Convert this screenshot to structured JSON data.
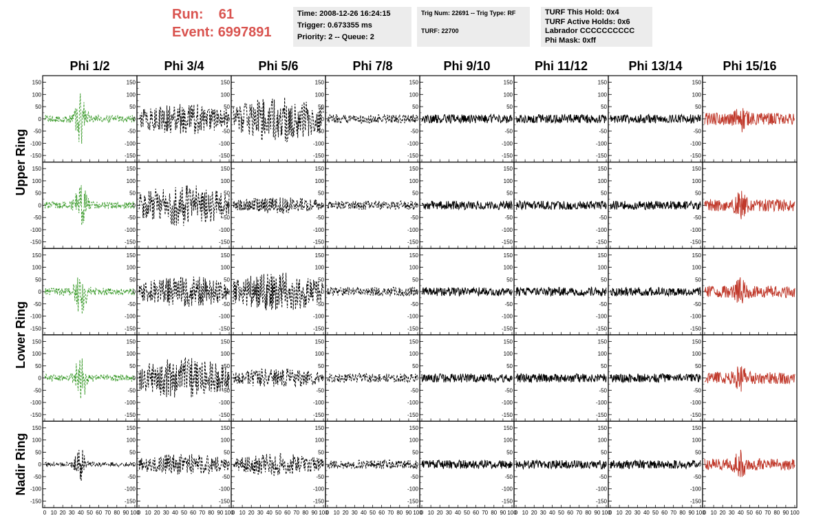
{
  "header": {
    "run_label": "Run:",
    "run_value": "61",
    "event_label": "Event:",
    "event_value": "6997891"
  },
  "info_time": {
    "line1": "Time: 2008-12-26 16:24:15",
    "line2": "Trigger: 0.673355 ms",
    "line3": "Priority: 2 -- Queue: 2"
  },
  "info_trig": {
    "line1": "Trig Num: 22691 -- Trig Type: RF",
    "line2": "TURF: 22700"
  },
  "info_turf": {
    "line1": "TURF This Hold: 0x4",
    "line2": "TURF Active Holds: 0x6",
    "line3": "Labrador CCCCCCCCCC",
    "line4": "Phi Mask: 0xff"
  },
  "columns": [
    "Phi 1/2",
    "Phi 3/4",
    "Phi 5/6",
    "Phi 7/8",
    "Phi 9/10",
    "Phi 11/12",
    "Phi 13/14",
    "Phi 15/16"
  ],
  "rows": [
    "Upper Ring",
    "Upper Ring",
    "Lower Ring",
    "Lower Ring",
    "Nadir Ring"
  ],
  "ring_labels": [
    "Upper Ring",
    "Lower Ring",
    "Nadir Ring"
  ],
  "chart_data": {
    "type": "line",
    "y_ticks": [
      "150",
      "100",
      "50",
      "0",
      "-50",
      "-100",
      "-150"
    ],
    "x_ticks": [
      "0",
      "10",
      "20",
      "30",
      "40",
      "50",
      "60",
      "70",
      "80",
      "90",
      "100"
    ],
    "ylim": [
      -160,
      160
    ],
    "xlim": [
      0,
      100
    ],
    "colors": {
      "green": "#3a9a2a",
      "black": "#000000",
      "red": "#c0392b"
    }
  }
}
